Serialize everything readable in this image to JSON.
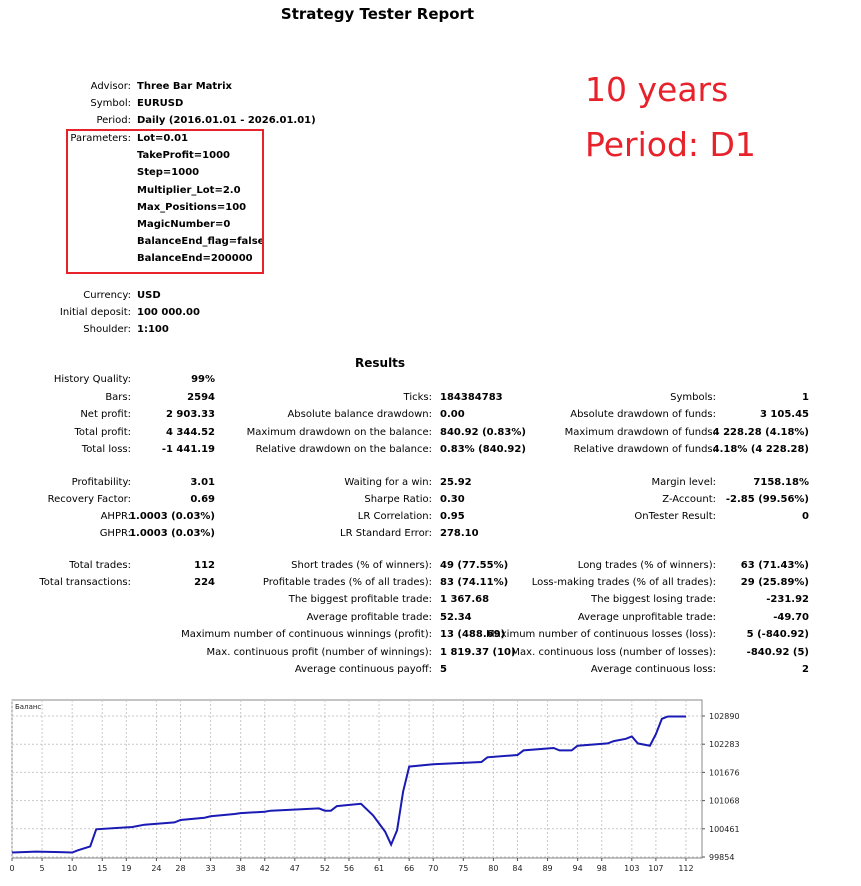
{
  "report": {
    "title": "Strategy Tester Report",
    "header": [
      {
        "label": "Advisor:",
        "value": "Three Bar Matrix"
      },
      {
        "label": "Symbol:",
        "value": "EURUSD"
      },
      {
        "label": "Period:",
        "value": "Daily (2016.01.01 - 2026.01.01)"
      }
    ],
    "parameters_label": "Parameters:",
    "parameters": [
      "Lot=0.01",
      "TakeProfit=1000",
      "Step=1000",
      "Multiplier_Lot=2.0",
      "Max_Positions=100",
      "MagicNumber=0",
      "BalanceEnd_flag=false",
      "BalanceEnd=200000"
    ],
    "account": [
      {
        "label": "Currency:",
        "value": "USD"
      },
      {
        "label": "Initial deposit:",
        "value": "100 000.00"
      },
      {
        "label": "Shoulder:",
        "value": "1:100"
      }
    ]
  },
  "annotation": {
    "line1": "10 years",
    "line2": "Period: D1",
    "color": "#e8222b"
  },
  "results": {
    "title": "Results",
    "col1": [
      {
        "label": "History Quality:",
        "value": "99%"
      },
      {
        "label": "Bars:",
        "value": "2594"
      },
      {
        "label": "Net profit:",
        "value": "2 903.33"
      },
      {
        "label": "Total profit:",
        "value": "4 344.52"
      },
      {
        "label": "Total loss:",
        "value": "-1 441.19"
      },
      {
        "label": "Profitability:",
        "value": "3.01"
      },
      {
        "label": "Recovery Factor:",
        "value": "0.69"
      },
      {
        "label": "AHPR:",
        "value": "1.0003 (0.03%)"
      },
      {
        "label": "GHPR:",
        "value": "1.0003 (0.03%)"
      },
      {
        "label": "Total trades:",
        "value": "112"
      },
      {
        "label": "Total transactions:",
        "value": "224"
      }
    ],
    "col2": [
      {
        "label": "Ticks:",
        "value": "184384783"
      },
      {
        "label": "Absolute balance drawdown:",
        "value": "0.00"
      },
      {
        "label": "Maximum drawdown on the balance:",
        "value": "840.92 (0.83%)"
      },
      {
        "label": "Relative drawdown on the balance:",
        "value": "0.83% (840.92)"
      },
      {
        "label": "Waiting for a win:",
        "value": "25.92"
      },
      {
        "label": "Sharpe Ratio:",
        "value": "0.30"
      },
      {
        "label": "LR Correlation:",
        "value": "0.95"
      },
      {
        "label": "LR Standard Error:",
        "value": "278.10"
      },
      {
        "label": "Short trades (% of winners):",
        "value": "49 (77.55%)"
      },
      {
        "label": "Profitable trades (% of all trades):",
        "value": "83 (74.11%)"
      },
      {
        "label": "The biggest profitable trade:",
        "value": "1 367.68"
      },
      {
        "label": "Average profitable trade:",
        "value": "52.34"
      },
      {
        "label": "Maximum number of continuous winnings (profit):",
        "value": "13 (488.69)"
      },
      {
        "label": "Max. continuous profit (number of winnings):",
        "value": "1 819.37 (10)"
      },
      {
        "label": "Average continuous payoff:",
        "value": "5"
      }
    ],
    "col3": [
      {
        "label": "Symbols:",
        "value": "1"
      },
      {
        "label": "Absolute drawdown of funds:",
        "value": "3 105.45"
      },
      {
        "label": "Maximum drawdown of funds:",
        "value": "4 228.28 (4.18%)"
      },
      {
        "label": "Relative drawdown of funds:",
        "value": "4.18% (4 228.28)"
      },
      {
        "label": "Margin level:",
        "value": "7158.18%"
      },
      {
        "label": "Z-Account:",
        "value": "-2.85 (99.56%)"
      },
      {
        "label": "OnTester Result:",
        "value": "0"
      },
      {
        "label": "Long trades (% of winners):",
        "value": "63 (71.43%)"
      },
      {
        "label": "Loss-making trades (% of all trades):",
        "value": "29 (25.89%)"
      },
      {
        "label": "The biggest losing trade:",
        "value": "-231.92"
      },
      {
        "label": "Average unprofitable trade:",
        "value": "-49.70"
      },
      {
        "label": "Maximum number of continuous losses (loss):",
        "value": "5 (-840.92)"
      },
      {
        "label": "Max. continuous loss (number of losses):",
        "value": "-840.92 (5)"
      },
      {
        "label": "Average continuous loss:",
        "value": "2"
      }
    ]
  },
  "chart_data": {
    "type": "line",
    "title": "Баланс",
    "line_color": "#1a1ab4",
    "grid": true,
    "xlim": [
      0,
      114
    ],
    "ylim": [
      99854,
      103100
    ],
    "x_ticks": [
      0,
      5,
      10,
      15,
      19,
      24,
      28,
      33,
      38,
      42,
      47,
      52,
      56,
      61,
      66,
      70,
      75,
      80,
      84,
      89,
      94,
      98,
      103,
      107,
      112
    ],
    "y_ticks": [
      99854,
      100461,
      101068,
      101676,
      102283,
      102890
    ],
    "series": [
      {
        "x": [
          0,
          4,
          8,
          10,
          11,
          13,
          14,
          20,
          22,
          27,
          28,
          32,
          33,
          37,
          38,
          42,
          43,
          51,
          52,
          53,
          54,
          58,
          60,
          62,
          63,
          64,
          65,
          66,
          70,
          78,
          79,
          84,
          85,
          90,
          91,
          93,
          94,
          99,
          100,
          102,
          103,
          104,
          106,
          107,
          108,
          109,
          112
        ],
        "y": [
          99950,
          99970,
          99960,
          99950,
          100000,
          100080,
          100450,
          100500,
          100550,
          100600,
          100650,
          100700,
          100730,
          100780,
          100800,
          100830,
          100850,
          100900,
          100850,
          100850,
          100950,
          101000,
          100750,
          100400,
          100120,
          100430,
          101260,
          101800,
          101850,
          101900,
          102000,
          102050,
          102150,
          102200,
          102150,
          102150,
          102250,
          102300,
          102350,
          102400,
          102450,
          102300,
          102250,
          102500,
          102830,
          102880,
          102880
        ]
      }
    ]
  }
}
